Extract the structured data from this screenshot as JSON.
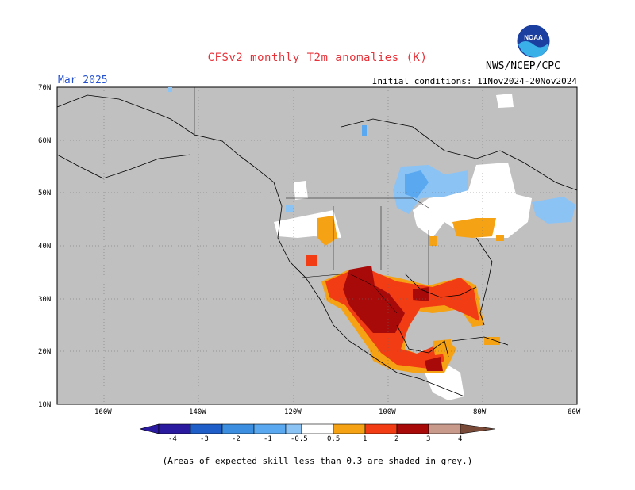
{
  "header": {
    "title": "CFSv2 monthly T2m anomalies (K)",
    "valid_month": "Mar 2025",
    "initial_conditions": "Initial conditions: 11Nov2024-20Nov2024",
    "agency": "NWS/NCEP/CPC",
    "logo_text": "NOAA"
  },
  "axes": {
    "lat_labels": [
      "70N",
      "60N",
      "50N",
      "40N",
      "30N",
      "20N",
      "10N"
    ],
    "lon_labels": [
      "160W",
      "140W",
      "120W",
      "100W",
      "80W",
      "60W"
    ]
  },
  "legend": {
    "ticks": [
      "-4",
      "-3",
      "-2",
      "-1",
      "-0.5",
      "0.5",
      "1",
      "2",
      "3",
      "4"
    ],
    "colors": [
      "#2a1aa0",
      "#1f5ec8",
      "#3c8ee0",
      "#5aa8f0",
      "#8cc3f5",
      "#ffffff",
      "#f5a214",
      "#f23c14",
      "#a80a0a",
      "#c89a8c",
      "#7a4a38"
    ]
  },
  "colors": {
    "grey_skill": "#c0c0c0",
    "cold_light": "#8cc3f5",
    "cold_mid": "#5aa8f0",
    "warm_light": "#f5a214",
    "warm_mid": "#f23c14",
    "warm_dark": "#a80a0a"
  },
  "footnote": "(Areas of expected skill less than 0.3 are shaded in grey.)"
}
